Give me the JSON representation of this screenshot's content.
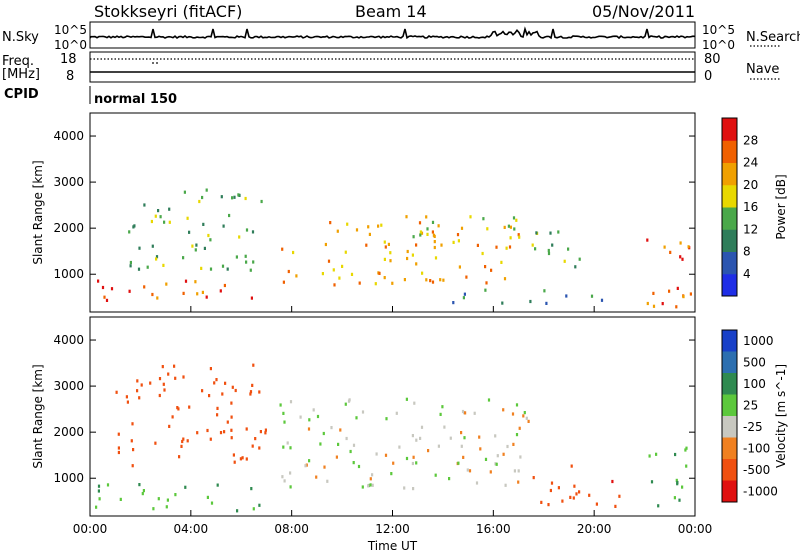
{
  "header": {
    "station": "Stokkseyri (fitACF)",
    "beam": "Beam 14",
    "date": "05/Nov/2011"
  },
  "top_panels": {
    "nsky_label": "N.Sky",
    "nsky_ticks": [
      "10^5",
      "10^0"
    ],
    "nsearch_label": "N.Search",
    "nsearch_ticks": [
      "10^5",
      "10^0"
    ],
    "freq_label": "Freq.",
    "freq_unit": "[MHz]",
    "freq_ticks": [
      "18",
      "8"
    ],
    "nave_label": "Nave",
    "nave_ticks": [
      "80",
      "0"
    ],
    "cpid_label": "CPID",
    "cpid_value": "normal 150"
  },
  "colors": {
    "power_scale": [
      "#1f2ee6",
      "#2b55b0",
      "#2f7d5a",
      "#4aa84a",
      "#e8d800",
      "#f0a000",
      "#f06000",
      "#e01010"
    ],
    "velocity_scale": [
      "#1840c8",
      "#2c6fb0",
      "#2f8a50",
      "#5cc83c",
      "#c8c8c0",
      "#f08020",
      "#f05010",
      "#e01010"
    ]
  },
  "chart_data": [
    {
      "type": "heatmap",
      "title": "",
      "xlabel": "",
      "ylabel": "Slant Range [km]",
      "x_ticks": [
        "00:00",
        "04:00",
        "08:00",
        "12:00",
        "16:00",
        "20:00",
        "00:00"
      ],
      "y_ticks": [
        "1000",
        "2000",
        "3000",
        "4000"
      ],
      "ylim": [
        180,
        4500
      ],
      "colorbar_label": "Power [dB]",
      "colorbar_ticks": [
        "4",
        "8",
        "12",
        "16",
        "20",
        "24",
        "28"
      ],
      "color_range": [
        0,
        32
      ],
      "scatter_regions": [
        {
          "t0": 0.1,
          "t1": 6.9,
          "r0": 400,
          "r1": 900,
          "level": 26
        },
        {
          "t0": 1.5,
          "t1": 7.0,
          "r0": 1100,
          "r1": 2900,
          "level": 14
        },
        {
          "t0": 7.5,
          "t1": 17.0,
          "r0": 800,
          "r1": 2200,
          "level": 22
        },
        {
          "t0": 10.5,
          "t1": 17.5,
          "r0": 1800,
          "r1": 2300,
          "level": 18
        },
        {
          "t0": 14.0,
          "t1": 20.5,
          "r0": 400,
          "r1": 700,
          "level": 10
        },
        {
          "t0": 17.5,
          "t1": 20.0,
          "r0": 1100,
          "r1": 2000,
          "level": 14
        },
        {
          "t0": 22.0,
          "t1": 23.9,
          "r0": 300,
          "r1": 2000,
          "level": 26
        }
      ]
    },
    {
      "type": "heatmap",
      "title": "",
      "xlabel": "Time UT",
      "ylabel": "Slant Range [km]",
      "x_ticks": [
        "00:00",
        "04:00",
        "08:00",
        "12:00",
        "16:00",
        "20:00",
        "00:00"
      ],
      "y_ticks": [
        "1000",
        "2000",
        "3000",
        "4000"
      ],
      "ylim": [
        180,
        4500
      ],
      "colorbar_label": "Velocity [m s^-1]",
      "colorbar_ticks": [
        "1000",
        "500",
        "100",
        "25",
        "-25",
        "-100",
        "-500",
        "-1000"
      ],
      "scatter_regions": [
        {
          "t0": 0.1,
          "t1": 6.8,
          "r0": 300,
          "r1": 900,
          "value": 80
        },
        {
          "t0": 1.0,
          "t1": 7.0,
          "r0": 1300,
          "r1": 3500,
          "value": -400
        },
        {
          "t0": 7.5,
          "t1": 17.5,
          "r0": 800,
          "r1": 2800,
          "value": 0
        },
        {
          "t0": 17.5,
          "t1": 21.0,
          "r0": 400,
          "r1": 1300,
          "value": -450
        },
        {
          "t0": 22.0,
          "t1": 23.9,
          "r0": 400,
          "r1": 1700,
          "value": 90
        }
      ]
    }
  ]
}
